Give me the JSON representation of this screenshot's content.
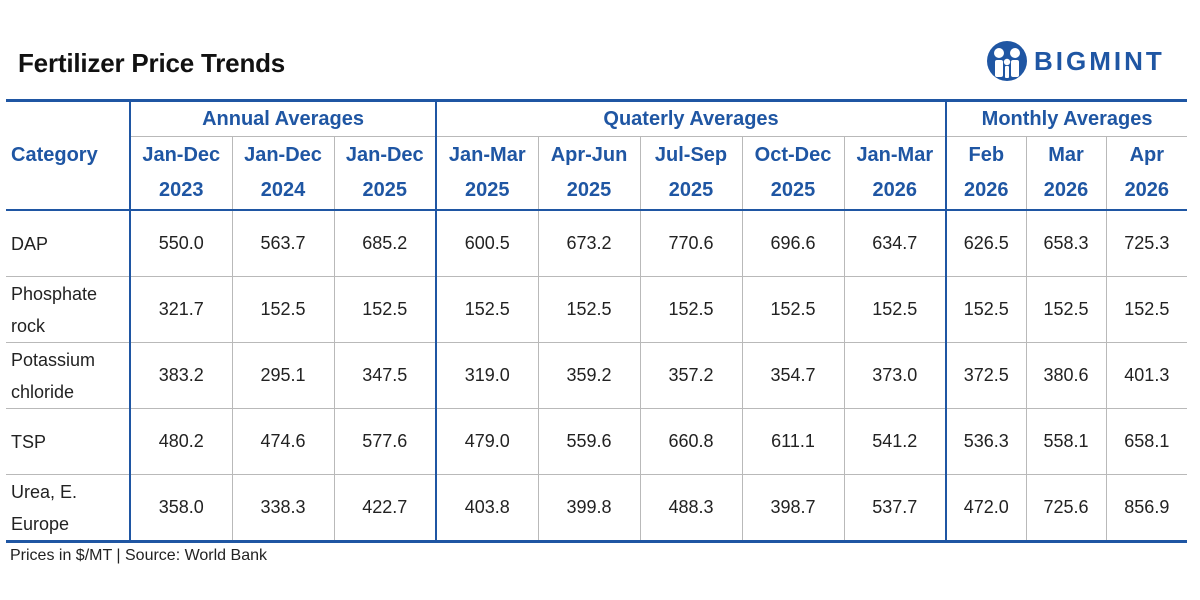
{
  "header": {
    "title": "Fertilizer Price Trends",
    "logo_text": "BIGMINT",
    "brand_color": "#1f56a3"
  },
  "chart_data": {
    "type": "table",
    "title": "Fertilizer Price Trends",
    "category_header": "Category",
    "groups": [
      {
        "label": "Annual Averages",
        "span": 3
      },
      {
        "label": "Quaterly Averages",
        "span": 5
      },
      {
        "label": "Monthly Averages",
        "span": 3
      }
    ],
    "columns": [
      {
        "line1": "Jan-Dec",
        "line2": "2023"
      },
      {
        "line1": "Jan-Dec",
        "line2": "2024"
      },
      {
        "line1": "Jan-Dec",
        "line2": "2025"
      },
      {
        "line1": "Jan-Mar",
        "line2": "2025"
      },
      {
        "line1": "Apr-Jun",
        "line2": "2025"
      },
      {
        "line1": "Jul-Sep",
        "line2": "2025"
      },
      {
        "line1": "Oct-Dec",
        "line2": "2025"
      },
      {
        "line1": "Jan-Mar",
        "line2": "2026"
      },
      {
        "line1": "Feb",
        "line2": "2026"
      },
      {
        "line1": "Mar",
        "line2": "2026"
      },
      {
        "line1": "Apr",
        "line2": "2026"
      }
    ],
    "rows": [
      {
        "category": [
          "DAP"
        ],
        "values": [
          "550.0",
          "563.7",
          "685.2",
          "600.5",
          "673.2",
          "770.6",
          "696.6",
          "634.7",
          "626.5",
          "658.3",
          "725.3"
        ]
      },
      {
        "category": [
          "Phosphate",
          "rock"
        ],
        "values": [
          "321.7",
          "152.5",
          "152.5",
          "152.5",
          "152.5",
          "152.5",
          "152.5",
          "152.5",
          "152.5",
          "152.5",
          "152.5"
        ]
      },
      {
        "category": [
          "Potassium",
          "chloride"
        ],
        "values": [
          "383.2",
          "295.1",
          "347.5",
          "319.0",
          "359.2",
          "357.2",
          "354.7",
          "373.0",
          "372.5",
          "380.6",
          "401.3"
        ]
      },
      {
        "category": [
          "TSP"
        ],
        "values": [
          "480.2",
          "474.6",
          "577.6",
          "479.0",
          "559.6",
          "660.8",
          "611.1",
          "541.2",
          "536.3",
          "558.1",
          "658.1"
        ]
      },
      {
        "category": [
          "Urea, E.",
          "Europe"
        ],
        "values": [
          "358.0",
          "338.3",
          "422.7",
          "403.8",
          "399.8",
          "488.3",
          "398.7",
          "537.7",
          "472.0",
          "725.6",
          "856.9"
        ]
      }
    ]
  },
  "footnote": "Prices in $/MT | Source: World Bank"
}
